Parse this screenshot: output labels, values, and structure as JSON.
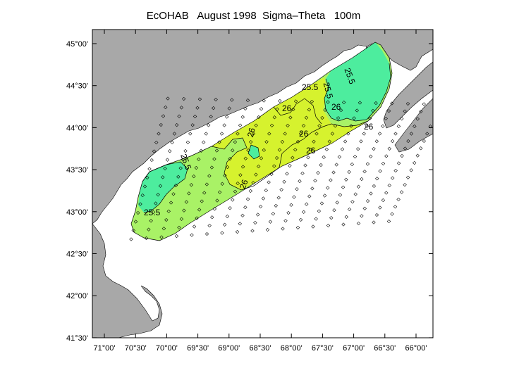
{
  "title": "EcOHAB   August 1998  Sigma–Theta   100m",
  "colors": {
    "land": "#a8a8a8",
    "low": "#4ded9e",
    "mid": "#a9f266",
    "high": "#d6f22e",
    "station": "#000000"
  },
  "axes": {
    "x_ticks": [
      "71°00'",
      "70°30'",
      "70°00'",
      "69°30'",
      "69°00'",
      "68°30'",
      "68°00'",
      "67°30'",
      "67°00'",
      "66°30'",
      "66°00'"
    ],
    "y_ticks": [
      "45°00'",
      "44°30'",
      "44°00'",
      "43°30'",
      "43°00'",
      "42°30'",
      "42°00'",
      "41°30'"
    ]
  },
  "contour_labels": [
    "25.5",
    "25.5",
    "26",
    "25.5",
    "26",
    "26",
    "26",
    "26",
    "26",
    "25.5",
    "25.5",
    "26"
  ]
}
